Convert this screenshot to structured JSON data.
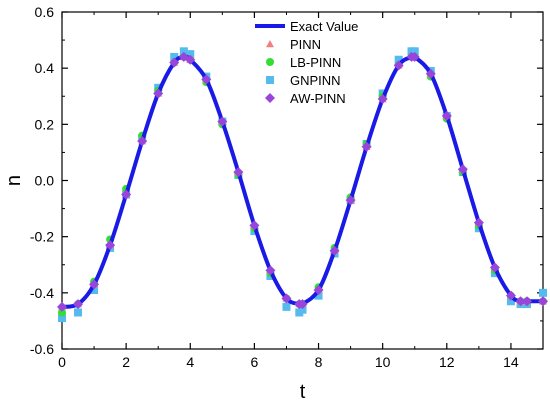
{
  "chart_data": {
    "type": "line",
    "xlabel": "t",
    "ylabel": "n",
    "xlim": [
      0,
      15
    ],
    "ylim": [
      -0.6,
      0.6
    ],
    "x_ticks": [
      0,
      2,
      4,
      6,
      8,
      10,
      12,
      14
    ],
    "y_ticks": [
      -0.6,
      -0.4,
      -0.2,
      0.0,
      0.2,
      0.4,
      0.6
    ],
    "x_tick_labels": [
      "0",
      "2",
      "4",
      "6",
      "8",
      "10",
      "12",
      "14"
    ],
    "y_tick_labels": [
      "-0.6",
      "-0.4",
      "-0.2",
      "0.0",
      "0.2",
      "0.4",
      "0.6"
    ],
    "grid": false,
    "legend_position": "top-center",
    "x": [
      0,
      0.5,
      1,
      1.5,
      2,
      2.5,
      3,
      3.5,
      3.8,
      4,
      4.5,
      5,
      5.5,
      6,
      6.5,
      7,
      7.4,
      7.5,
      8,
      8.5,
      9,
      9.5,
      10,
      10.5,
      10.9,
      11,
      11.5,
      12,
      12.5,
      13,
      13.5,
      14,
      14.3,
      14.5,
      15
    ],
    "series": [
      {
        "name": "Exact Value",
        "style": "line",
        "color": "#1a1ae6",
        "values": [
          -0.45,
          -0.44,
          -0.37,
          -0.23,
          -0.05,
          0.14,
          0.31,
          0.42,
          0.44,
          0.43,
          0.36,
          0.21,
          0.03,
          -0.16,
          -0.32,
          -0.42,
          -0.44,
          -0.44,
          -0.39,
          -0.25,
          -0.07,
          0.12,
          0.29,
          0.41,
          0.44,
          0.44,
          0.38,
          0.23,
          0.04,
          -0.15,
          -0.31,
          -0.41,
          -0.43,
          -0.43,
          -0.43
        ]
      },
      {
        "name": "PINN",
        "style": "triangle",
        "color": "#f08080",
        "values": [
          -0.45,
          -0.44,
          -0.37,
          -0.23,
          -0.05,
          0.14,
          0.31,
          0.42,
          0.44,
          0.43,
          0.36,
          0.21,
          0.03,
          -0.16,
          -0.32,
          -0.42,
          -0.44,
          -0.44,
          -0.39,
          -0.25,
          -0.07,
          0.12,
          0.29,
          0.41,
          0.44,
          0.44,
          0.38,
          0.23,
          0.04,
          -0.15,
          -0.31,
          -0.41,
          -0.43,
          -0.43,
          -0.43
        ]
      },
      {
        "name": "LB-PINN",
        "style": "circle",
        "color": "#33dd33",
        "values": [
          -0.47,
          -0.44,
          -0.36,
          -0.21,
          -0.03,
          0.16,
          0.32,
          0.42,
          0.44,
          0.43,
          0.35,
          0.2,
          0.02,
          -0.17,
          -0.33,
          -0.42,
          -0.44,
          -0.44,
          -0.38,
          -0.24,
          -0.06,
          0.13,
          0.3,
          0.41,
          0.44,
          0.44,
          0.37,
          0.22,
          0.03,
          -0.16,
          -0.32,
          -0.41,
          -0.43,
          -0.43,
          -0.43
        ]
      },
      {
        "name": "GNPINN",
        "style": "square",
        "color": "#55bbee",
        "values": [
          -0.49,
          -0.47,
          -0.39,
          -0.24,
          -0.05,
          0.15,
          0.33,
          0.44,
          0.46,
          0.45,
          0.37,
          0.21,
          0.02,
          -0.18,
          -0.34,
          -0.45,
          -0.47,
          -0.46,
          -0.41,
          -0.26,
          -0.07,
          0.13,
          0.31,
          0.43,
          0.46,
          0.46,
          0.39,
          0.23,
          0.03,
          -0.17,
          -0.33,
          -0.43,
          -0.44,
          -0.44,
          -0.4
        ]
      },
      {
        "name": "AW-PINN",
        "style": "diamond",
        "color": "#9944dd",
        "values": [
          -0.45,
          -0.44,
          -0.37,
          -0.23,
          -0.05,
          0.14,
          0.31,
          0.42,
          0.44,
          0.43,
          0.36,
          0.21,
          0.03,
          -0.16,
          -0.32,
          -0.42,
          -0.44,
          -0.44,
          -0.39,
          -0.25,
          -0.07,
          0.12,
          0.29,
          0.41,
          0.44,
          0.44,
          0.38,
          0.23,
          0.04,
          -0.15,
          -0.31,
          -0.41,
          -0.43,
          -0.43,
          -0.43
        ]
      }
    ]
  }
}
